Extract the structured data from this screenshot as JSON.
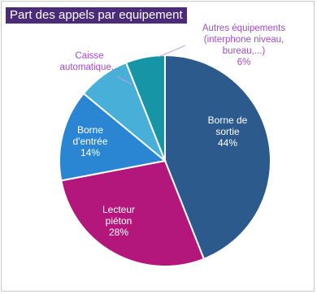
{
  "chart_data": {
    "type": "pie",
    "title": "Part des appels par equipement",
    "series": [
      {
        "name": "Borne de sortie",
        "label_lines": [
          "Borne de",
          "sortie"
        ],
        "value": 44,
        "value_label": "44%",
        "color": "#2c5a8c",
        "text_color": "#ffffff"
      },
      {
        "name": "Lecteur piéton",
        "label_lines": [
          "Lecteur",
          "piéton"
        ],
        "value": 28,
        "value_label": "28%",
        "color": "#b3177c",
        "text_color": "#ffffff"
      },
      {
        "name": "Borne d'entrée",
        "label_lines": [
          "Borne",
          "d'entrée"
        ],
        "value": 14,
        "value_label": "14%",
        "color": "#2a86d2",
        "text_color": "#ffffff"
      },
      {
        "name": "Caisse automatique...",
        "label_lines": [
          "Caisse",
          "automatique..."
        ],
        "value": 8,
        "value_label": "",
        "color": "#48b0d8",
        "text_color": "#a24dc4"
      },
      {
        "name": "Autres équipements (interphone niveau, bureau,...)",
        "label_lines": [
          "Autres équipements",
          "(interphone niveau,",
          "bureau,...)"
        ],
        "value": 6,
        "value_label": "6%",
        "color": "#1595a6",
        "text_color": "#a24dc4"
      }
    ]
  }
}
